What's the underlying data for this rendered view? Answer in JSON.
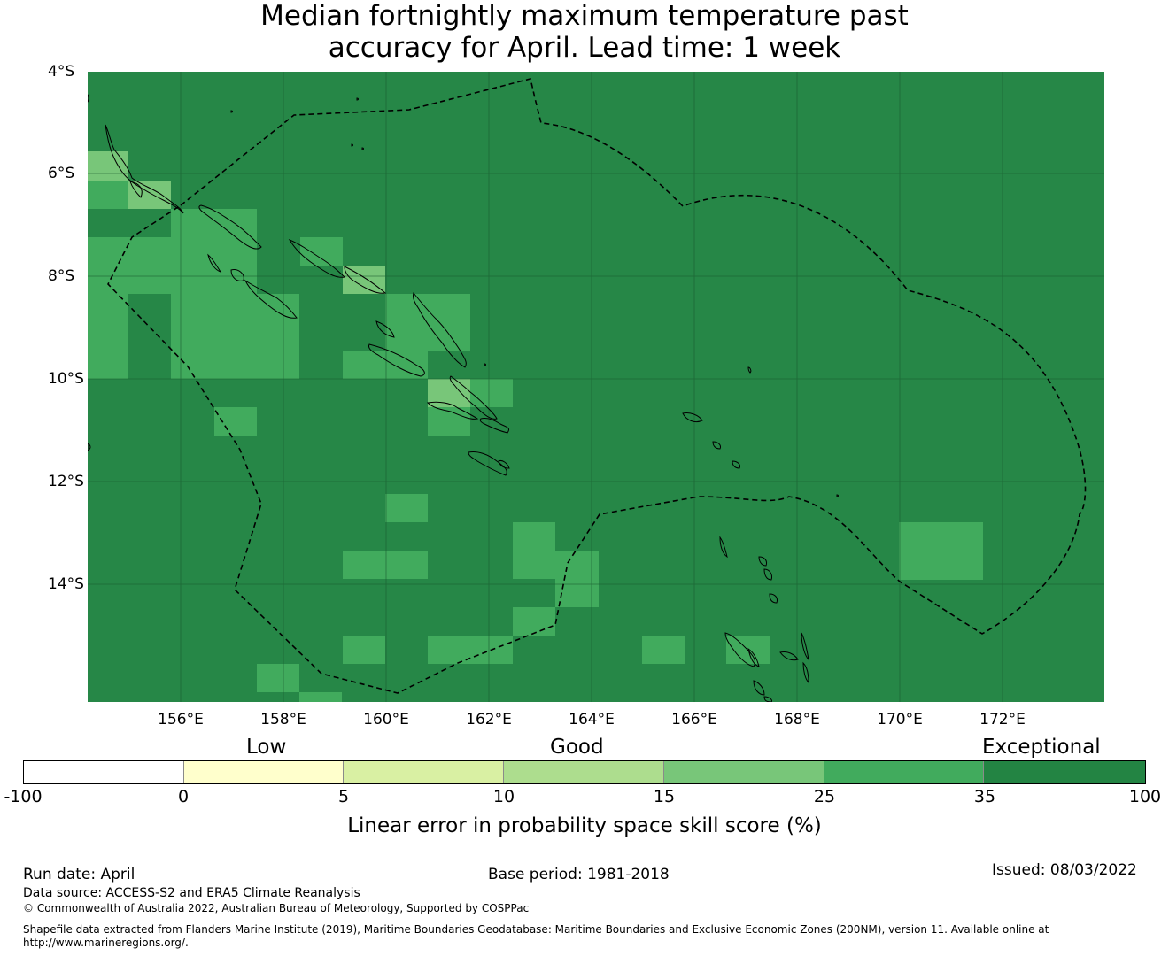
{
  "title": {
    "line1": "Median fortnightly maximum temperature past",
    "line2": "accuracy for April. Lead time: 1 week"
  },
  "map": {
    "background_color": "#268747",
    "lat_labels": [
      "4°S",
      "6°S",
      "8°S",
      "10°S",
      "12°S",
      "14°S"
    ],
    "lon_labels": [
      "156°E",
      "158°E",
      "160°E",
      "162°E",
      "164°E",
      "166°E",
      "168°E",
      "170°E",
      "172°E"
    ]
  },
  "colorbar": {
    "categories": [
      "Low",
      "Good",
      "Exceptional"
    ],
    "tick_labels": [
      "-100",
      "0",
      "5",
      "10",
      "15",
      "25",
      "35",
      "100"
    ],
    "colors": [
      "#ffffff",
      "#ffffcc",
      "#d9f0a3",
      "#addd8e",
      "#78c679",
      "#41ab5d",
      "#238443"
    ],
    "label": "Linear error in probability space skill score (%)"
  },
  "footer": {
    "run_date": "Run date: April",
    "base_period": "Base period: 1981-2018",
    "issued": "Issued: 08/03/2022",
    "data_source": "Data source: ACCESS-S2 and ERA5 Climate Reanalysis",
    "copyright": "© Commonwealth of Australia 2022, Australian Bureau of Meteorology, Supported by COSPPac",
    "shapefile_line1": "Shapefile data extracted from Flanders Marine Institute (2019), Maritime Boundaries Geodatabase: Maritime Boundaries and Exclusive Economic Zones (200NM), version 11. Available online at",
    "shapefile_line2": "http://www.marineregions.org/."
  }
}
